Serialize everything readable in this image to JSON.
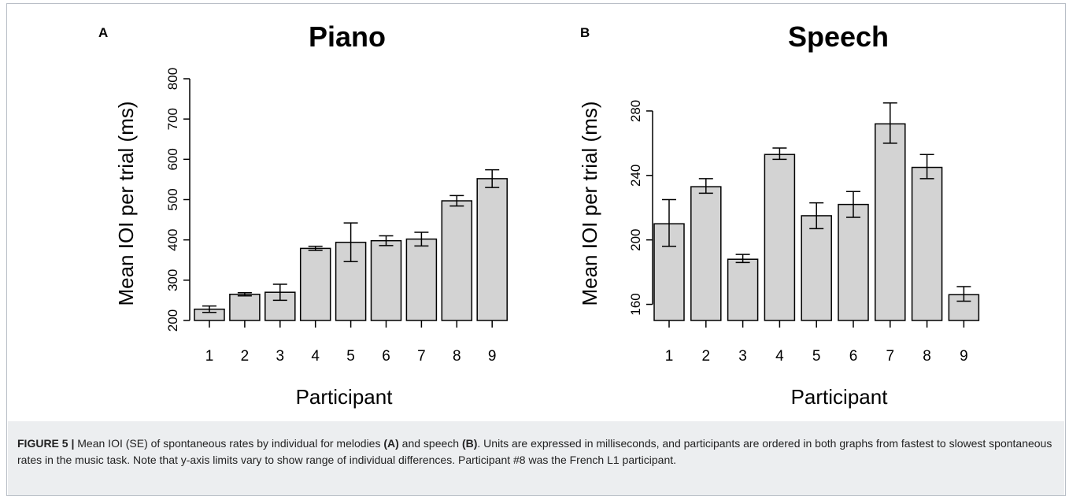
{
  "colors": {
    "bar_fill": "#d3d3d3",
    "bar_stroke": "#000000",
    "caption_bg": "#eceef0",
    "frame": "#b9bfc7"
  },
  "chart_data": [
    {
      "type": "bar",
      "panel": "A",
      "title": "Piano",
      "xlabel": "Participant",
      "ylabel": "Mean IOI per trial (ms)",
      "categories": [
        "1",
        "2",
        "3",
        "4",
        "5",
        "6",
        "7",
        "8",
        "9"
      ],
      "values": [
        228,
        265,
        270,
        379,
        394,
        398,
        402,
        497,
        552
      ],
      "error_low": [
        220,
        261,
        250,
        374,
        346,
        386,
        385,
        484,
        530
      ],
      "error_high": [
        236,
        269,
        290,
        384,
        442,
        410,
        419,
        510,
        574
      ],
      "ylim": [
        200,
        800
      ],
      "yticks": [
        "200",
        "300",
        "400",
        "500",
        "600",
        "700",
        "800"
      ],
      "grid": false
    },
    {
      "type": "bar",
      "panel": "B",
      "title": "Speech",
      "xlabel": "Participant",
      "ylabel": "Mean IOI per trial (ms)",
      "categories": [
        "1",
        "2",
        "3",
        "4",
        "5",
        "6",
        "7",
        "8",
        "9"
      ],
      "values": [
        210,
        233,
        188,
        253,
        215,
        222,
        272,
        245,
        166
      ],
      "error_low": [
        196,
        229,
        186,
        250,
        207,
        214,
        260,
        238,
        162
      ],
      "error_high": [
        225,
        238,
        191,
        257,
        223,
        230,
        285,
        253,
        171
      ],
      "ylim": [
        150,
        300
      ],
      "yticks": [
        "160",
        "200",
        "240",
        "280"
      ],
      "grid": false
    }
  ],
  "caption": {
    "label": "FIGURE 5 |",
    "text_1": " Mean IOI (SE) of spontaneous rates by individual for melodies ",
    "ref_a": "(A)",
    "text_2": " and speech ",
    "ref_b": "(B)",
    "text_3": ". Units are expressed in milliseconds, and participants are ordered in both graphs from fastest to slowest spontaneous rates in the music task. Note that y-axis limits vary to show range of individual differences. Participant #8 was the French L1 participant."
  }
}
